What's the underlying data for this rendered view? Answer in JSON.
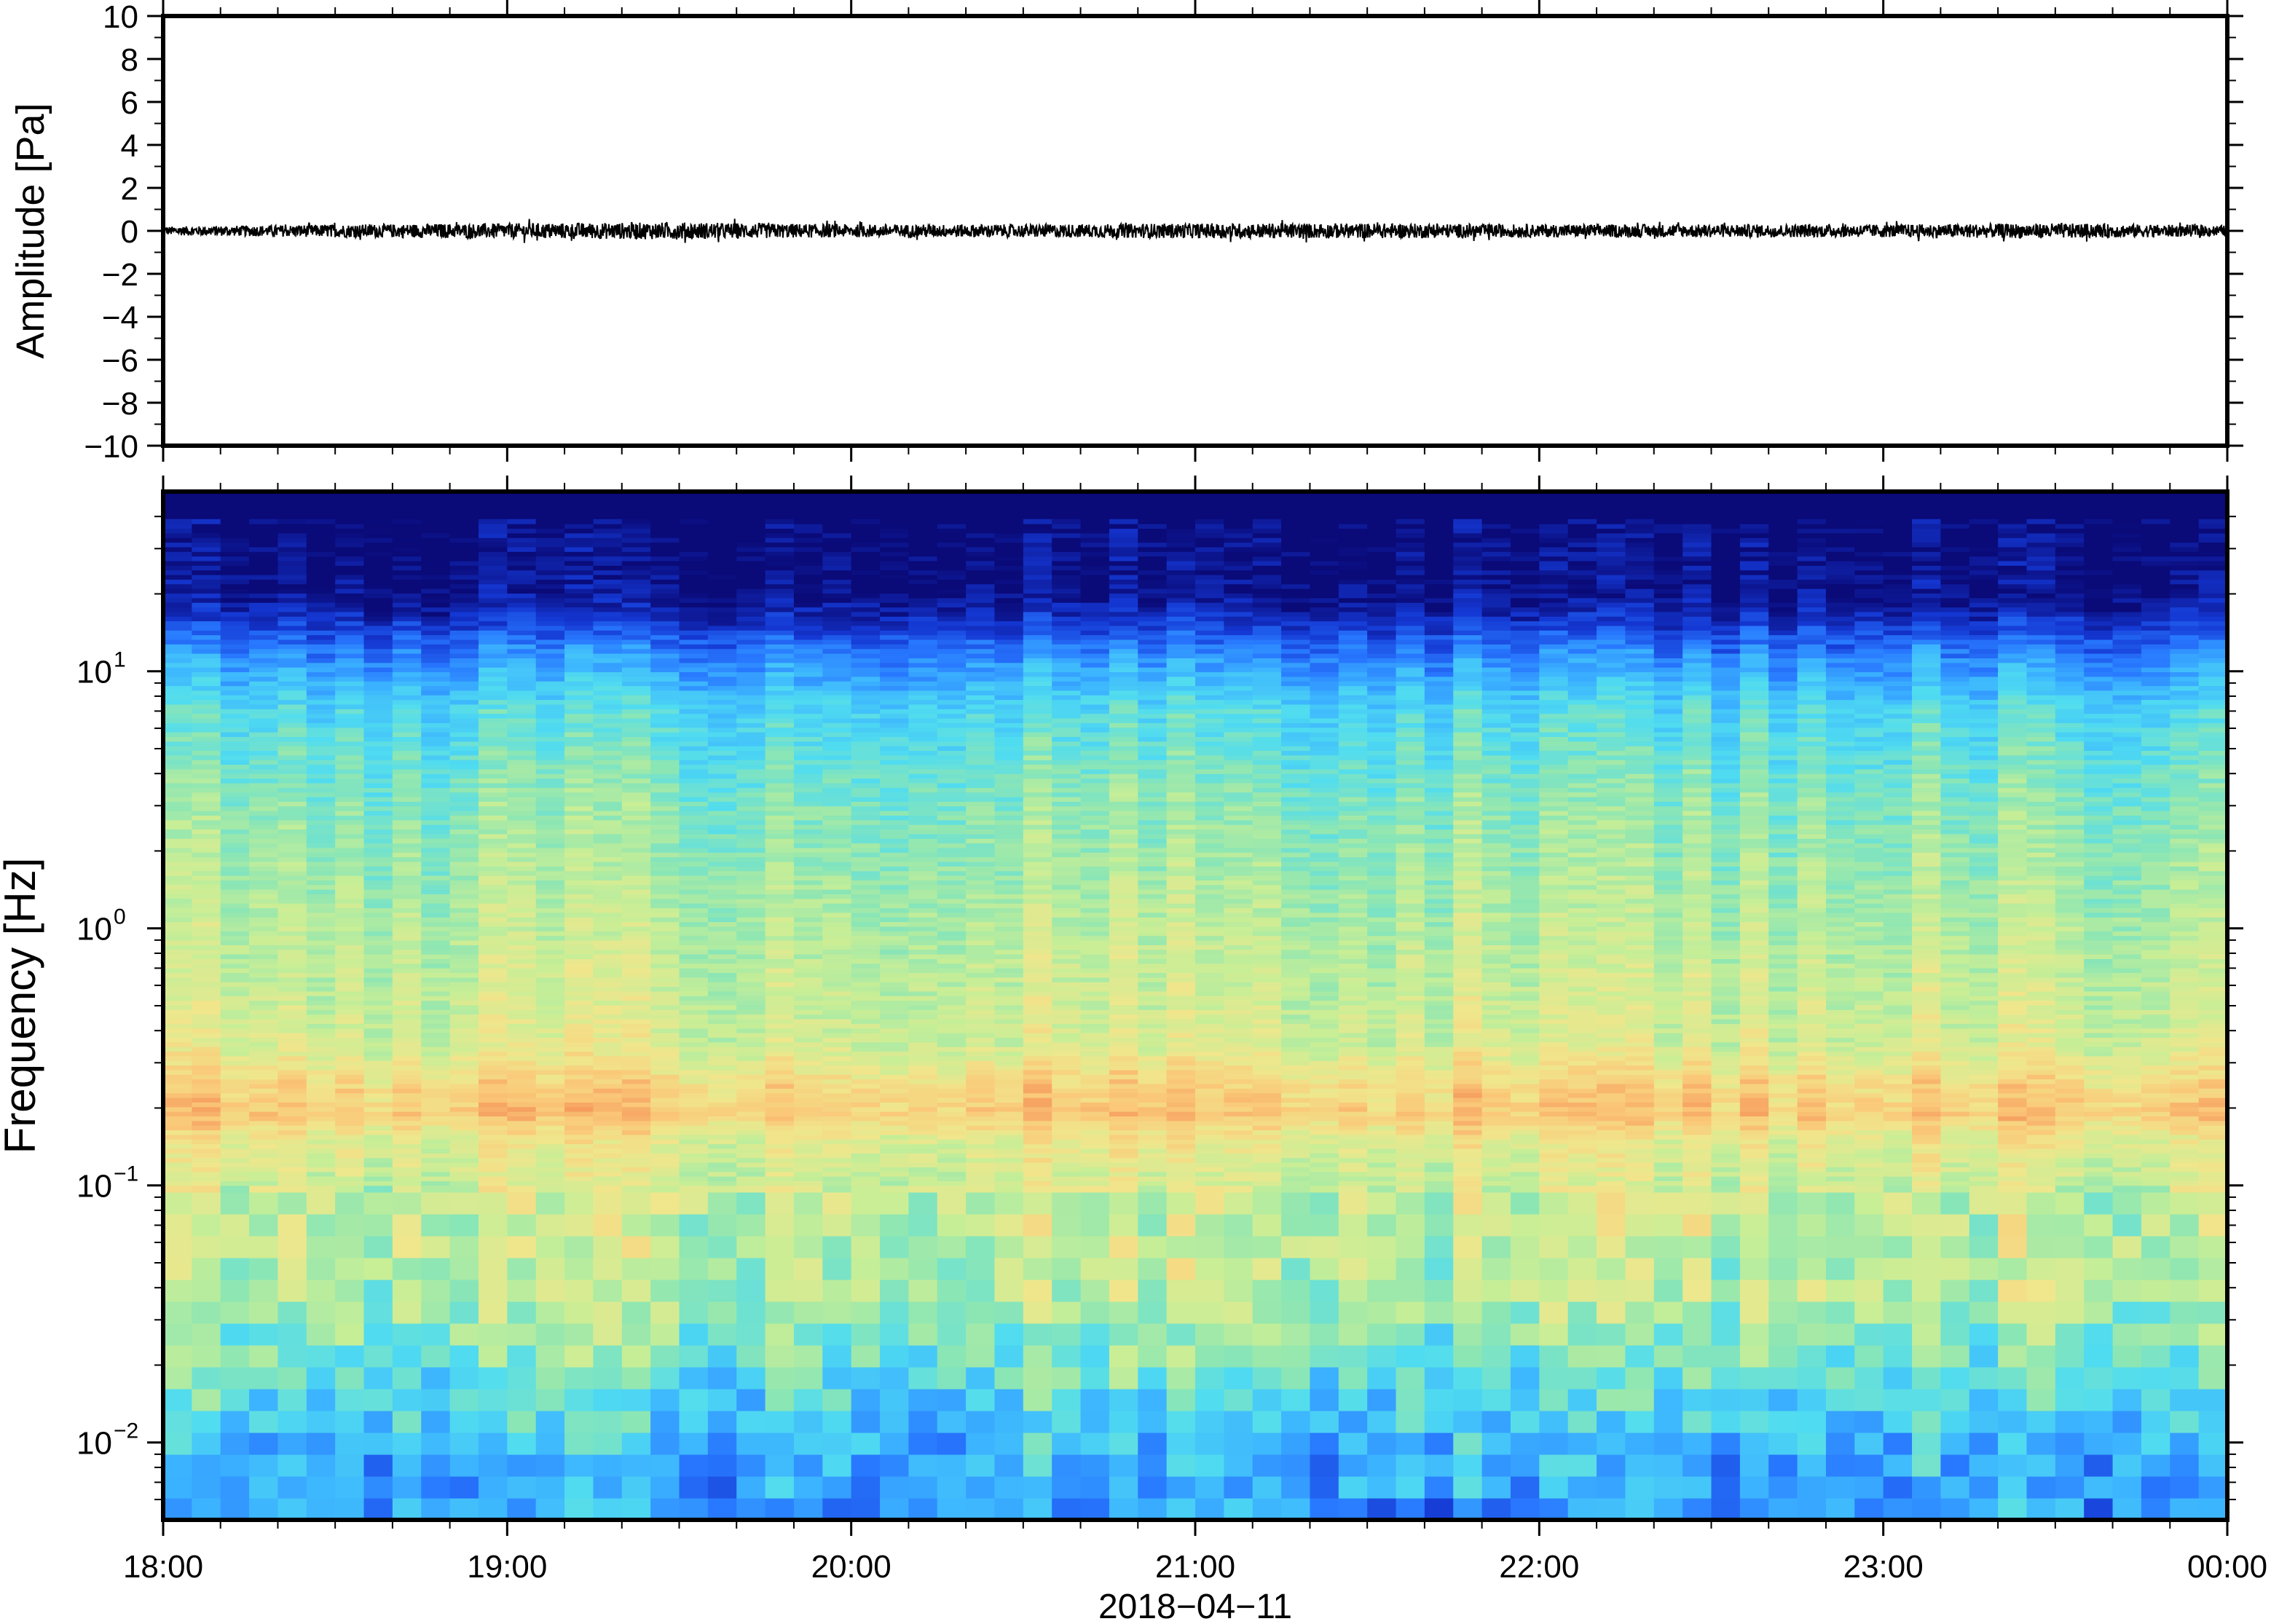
{
  "chart_data": [
    {
      "type": "line",
      "panel": "waveform",
      "ylabel": "Amplitude [Pa]",
      "ylim": [
        -10,
        10
      ],
      "yticks": [
        10,
        8,
        6,
        4,
        2,
        0,
        -2,
        -4,
        -6,
        -8,
        -10
      ],
      "ytick_labels": [
        "10",
        "8",
        "6",
        "4",
        "2",
        "0",
        "−2",
        "−4",
        "−6",
        "−8",
        "−10"
      ],
      "x_range": [
        "18:00",
        "00:00"
      ],
      "series_color": "#000000",
      "series": [
        {
          "x_hours": [
            0,
            0.5,
            1,
            1.5,
            2,
            2.5,
            3,
            3.5,
            4,
            4.5,
            5,
            5.5,
            6
          ],
          "envelope_pa": [
            0.2,
            0.3,
            0.35,
            0.4,
            0.3,
            0.3,
            0.35,
            0.35,
            0.3,
            0.3,
            0.3,
            0.35,
            0.25
          ]
        }
      ],
      "grid": false
    },
    {
      "type": "heatmap",
      "panel": "spectrogram",
      "ylabel": "Frequency [Hz]",
      "yscale": "log",
      "ylim": [
        0.005,
        50
      ],
      "yticks": [
        0.01,
        0.1,
        1,
        10
      ],
      "ytick_labels": [
        {
          "base": "10",
          "exp": "−2"
        },
        {
          "base": "10",
          "exp": "−1"
        },
        {
          "base": "10",
          "exp": "0"
        },
        {
          "base": "10",
          "exp": "1"
        }
      ],
      "xlabel": "2018−04−11",
      "xticks": [
        "18:00",
        "19:00",
        "20:00",
        "21:00",
        "22:00",
        "23:00",
        "00:00"
      ],
      "colormap": [
        "#0a0a78",
        "#1437d2",
        "#2878ff",
        "#3cb4ff",
        "#50dcf0",
        "#8ce6b4",
        "#c8ee96",
        "#f0e68c",
        "#fac878",
        "#f5965a",
        "#e6503c"
      ],
      "dominant_band_hz": [
        0.15,
        0.22
      ],
      "grid": false
    }
  ]
}
